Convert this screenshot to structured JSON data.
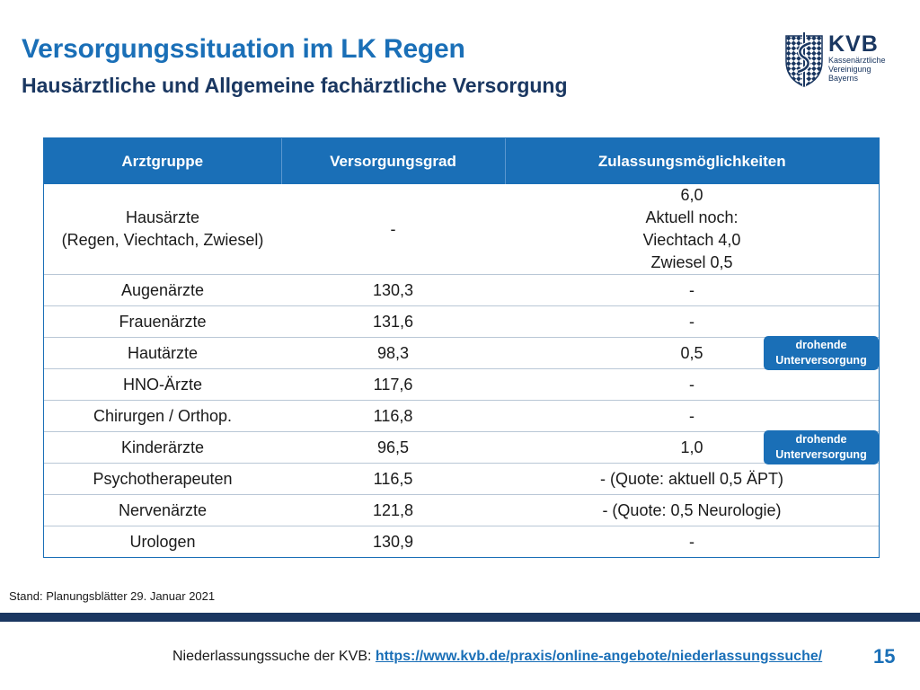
{
  "header": {
    "title": "Versorgungssituation im LK Regen",
    "subtitle": "Hausärztliche und Allgemeine fachärztliche Versorgung"
  },
  "logo": {
    "name": "KVB",
    "line1": "Kassenärztliche",
    "line2": "Vereinigung",
    "line3": "Bayerns",
    "icon": "bavarian-diamond-caduceus-icon"
  },
  "table": {
    "headers": [
      "Arztgruppe",
      "Versorgungsgrad",
      "Zulassungsmöglichkeiten"
    ],
    "hausaerzte": {
      "name_line1": "Hausärzte",
      "name_line2": "(Regen, Viechtach, Zwiesel)",
      "grad": "-",
      "z_line1": "6,0",
      "z_line2": "Aktuell noch:",
      "z_line3": "Viechtach 4,0",
      "z_line4": "Zwiesel 0,5"
    },
    "rows": [
      {
        "gruppe": "Augenärzte",
        "grad": "130,3",
        "zulassung": "-"
      },
      {
        "gruppe": "Frauenärzte",
        "grad": "131,6",
        "zulassung": "-"
      },
      {
        "gruppe": "Hautärzte",
        "grad": "98,3",
        "zulassung": "0,5"
      },
      {
        "gruppe": "HNO-Ärzte",
        "grad": "117,6",
        "zulassung": "-"
      },
      {
        "gruppe": "Chirurgen / Orthop.",
        "grad": "116,8",
        "zulassung": "-"
      },
      {
        "gruppe": "Kinderärzte",
        "grad": "96,5",
        "zulassung": "1,0"
      },
      {
        "gruppe": "Psychotherapeuten",
        "grad": "116,5",
        "zulassung": "- (Quote: aktuell 0,5 ÄPT)"
      },
      {
        "gruppe": "Nervenärzte",
        "grad": "121,8",
        "zulassung": "- (Quote: 0,5 Neurologie)"
      },
      {
        "gruppe": "Urologen",
        "grad": "130,9",
        "zulassung": "-"
      }
    ],
    "badge": {
      "line1": "drohende",
      "line2": "Unterversorgung"
    }
  },
  "stand": "Stand: Planungsblätter 29. Januar 2021",
  "footer": {
    "label": "Niederlassungssuche der KVB: ",
    "link": "https://www.kvb.de/praxis/online-angebote/niederlassungssuche/",
    "page_number": "15"
  },
  "colors": {
    "accent": "#1a6fb7",
    "navy": "#1a3761",
    "row_divider": "#b9c7d6"
  }
}
